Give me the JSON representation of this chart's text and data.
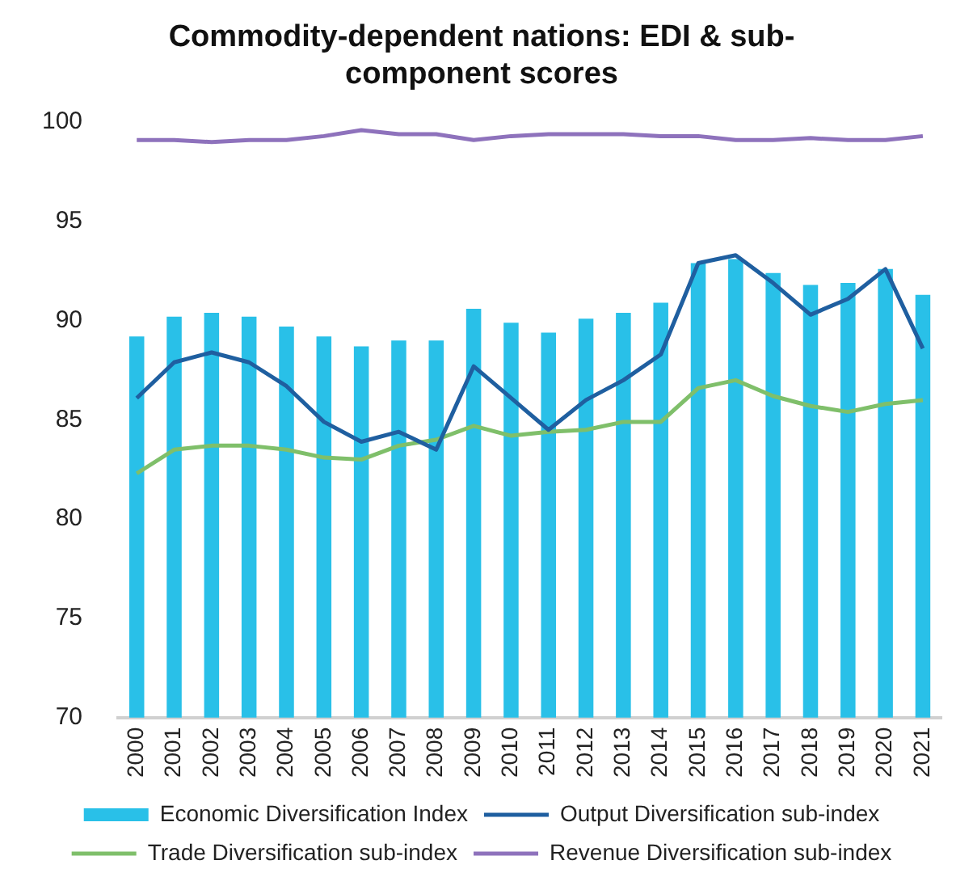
{
  "chart_data": {
    "type": "bar",
    "title": "Commodity-dependent nations: EDI & sub-component scores",
    "categories": [
      "2000",
      "2001",
      "2002",
      "2003",
      "2004",
      "2005",
      "2006",
      "2007",
      "2008",
      "2009",
      "2010",
      "2011",
      "2012",
      "2013",
      "2014",
      "2015",
      "2016",
      "2017",
      "2018",
      "2019",
      "2020",
      "2021"
    ],
    "series": [
      {
        "name": "Economic Diversification Index",
        "color": "#29c0e8",
        "values": [
          89.2,
          90.2,
          90.4,
          90.2,
          89.7,
          89.2,
          88.7,
          89.0,
          89.0,
          90.6,
          89.9,
          89.4,
          90.1,
          90.4,
          90.9,
          92.9,
          93.1,
          92.4,
          91.8,
          91.9,
          92.6,
          91.3
        ]
      },
      {
        "name": "Output Diversification sub-index",
        "type": "line",
        "color": "#1f5fa0",
        "values": [
          86.1,
          87.9,
          88.4,
          87.9,
          86.7,
          84.9,
          83.9,
          84.4,
          83.5,
          87.7,
          86.1,
          84.5,
          86.0,
          87.0,
          88.3,
          92.9,
          93.3,
          91.9,
          90.3,
          91.1,
          92.6,
          88.6
        ]
      },
      {
        "name": "Trade Diversification sub-index",
        "type": "line",
        "color": "#7fbf6a",
        "values": [
          82.3,
          83.5,
          83.7,
          83.7,
          83.5,
          83.1,
          83.0,
          83.7,
          84.0,
          84.7,
          84.2,
          84.4,
          84.5,
          84.9,
          84.9,
          86.6,
          87.0,
          86.2,
          85.7,
          85.4,
          85.8,
          86.0
        ]
      },
      {
        "name": "Revenue Diversification sub-index",
        "type": "line",
        "color": "#8e72bc",
        "values": [
          99.1,
          99.1,
          99.0,
          99.1,
          99.1,
          99.3,
          99.6,
          99.4,
          99.4,
          99.1,
          99.3,
          99.4,
          99.4,
          99.4,
          99.3,
          99.3,
          99.1,
          99.1,
          99.2,
          99.1,
          99.1,
          99.3
        ]
      }
    ],
    "ylim": [
      70,
      100
    ],
    "yticks": [
      70,
      75,
      80,
      85,
      90,
      95,
      100
    ],
    "grid": false,
    "legend": "bottom",
    "marker": "none"
  }
}
